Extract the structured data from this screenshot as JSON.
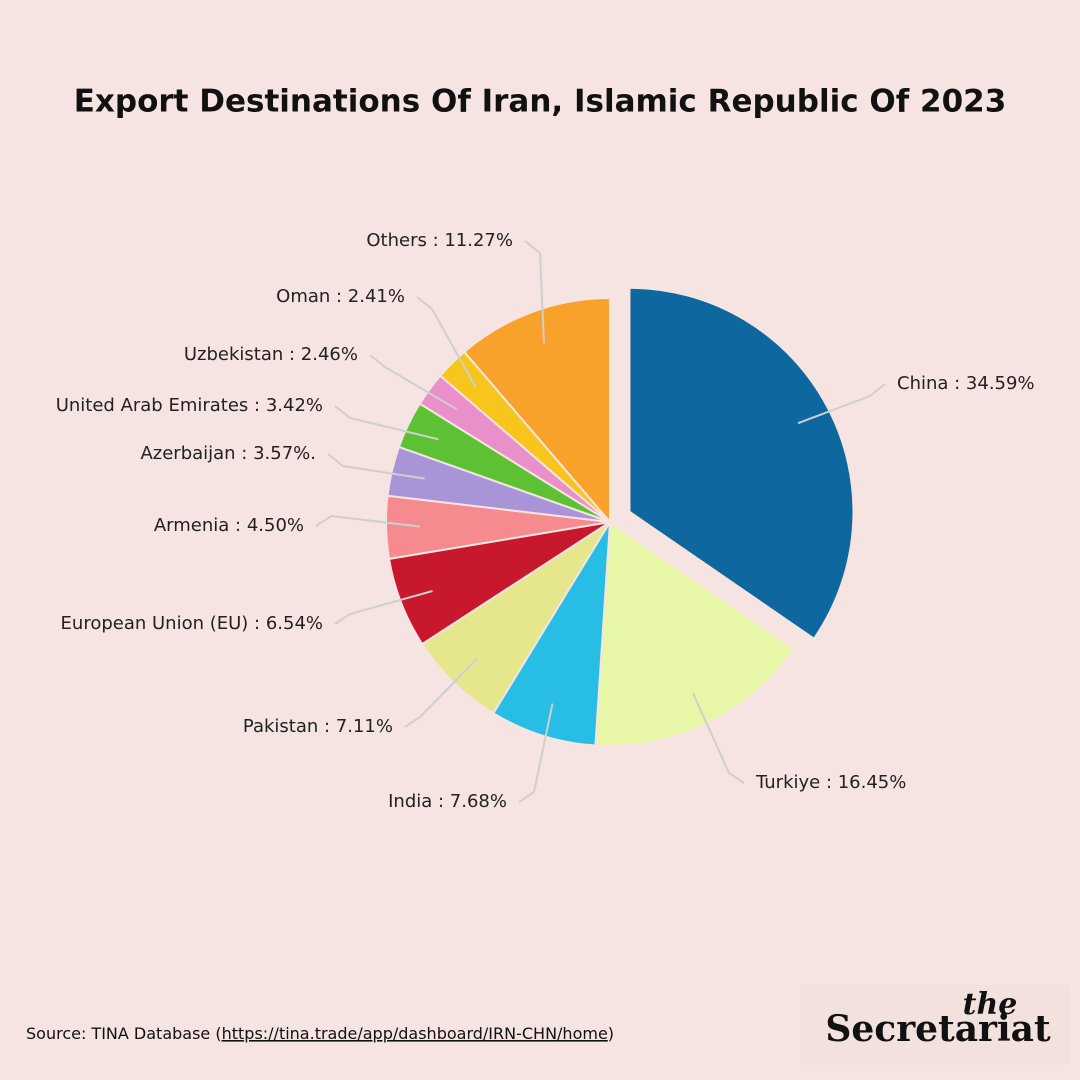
{
  "chart_data": {
    "type": "pie",
    "title": "Export Destinations Of Iran, Islamic Republic Of 2023",
    "categories": [
      "China : 34.59%",
      "Turkiye : 16.45%",
      "India : 7.68%",
      "Pakistan : 7.11%",
      "European Union (EU) : 6.54%",
      "Armenia : 4.50%",
      "Azerbaijan : 3.57%.",
      "United Arab Emirates : 3.42%",
      "Uzbekistan : 2.46%",
      "Oman : 2.41%",
      "Others : 11.27%"
    ],
    "values": [
      34.59,
      16.45,
      7.68,
      7.11,
      6.54,
      4.5,
      3.57,
      3.42,
      2.46,
      2.41,
      11.27
    ],
    "colors": [
      "#0e689f",
      "#e8f6a8",
      "#27bde4",
      "#e6e68c",
      "#c8182c",
      "#f58a8f",
      "#a894d6",
      "#5cc234",
      "#e98fc9",
      "#f8c51d",
      "#f8a12b"
    ]
  },
  "source": {
    "prefix": "Source: TINA Database (",
    "link": "https://tina.trade/app/dashboard/IRN-CHN/home",
    "suffix": ")"
  },
  "logo": {
    "small": "the",
    "large": "Secretariat"
  }
}
